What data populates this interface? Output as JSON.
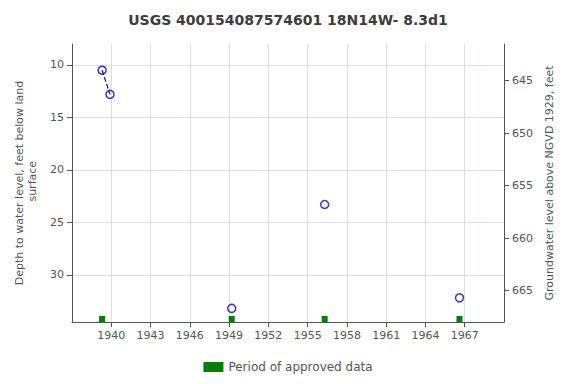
{
  "chart_data": {
    "type": "scatter",
    "title": "USGS 400154087574601 18N14W- 8.3d1",
    "ylabel": "Depth to water level, feet below land\n surface",
    "y2label": "Groundwater level above NGVD 1929, feet",
    "xlim": [
      1937.0,
      1970.0
    ],
    "ylim": [
      34.5,
      8.0
    ],
    "y2lim": [
      668.0,
      641.5
    ],
    "xticks": [
      1940,
      1943,
      1946,
      1949,
      1952,
      1955,
      1958,
      1961,
      1964,
      1967
    ],
    "yticks": [
      10,
      15,
      20,
      25,
      30
    ],
    "y2ticks": [
      665,
      660,
      655,
      650,
      645
    ],
    "grid": true,
    "legend": "bottom",
    "series": [
      {
        "type": "line",
        "line_style": "dashed",
        "color": "#0000cc",
        "x": [
          1939.3,
          1939.9
        ],
        "values": [
          10.5,
          12.8
        ]
      },
      {
        "type": "scatter",
        "marker": "circle_open",
        "color": "#0000cc",
        "x": [
          1939.3,
          1939.9,
          1949.2,
          1956.3,
          1966.6
        ],
        "values": [
          10.5,
          12.8,
          33.2,
          23.3,
          32.2
        ]
      },
      {
        "name": "Period of approved data",
        "type": "bar",
        "color": "#008000",
        "x": [
          1939.3,
          1949.2,
          1956.3,
          1966.6
        ]
      }
    ]
  }
}
